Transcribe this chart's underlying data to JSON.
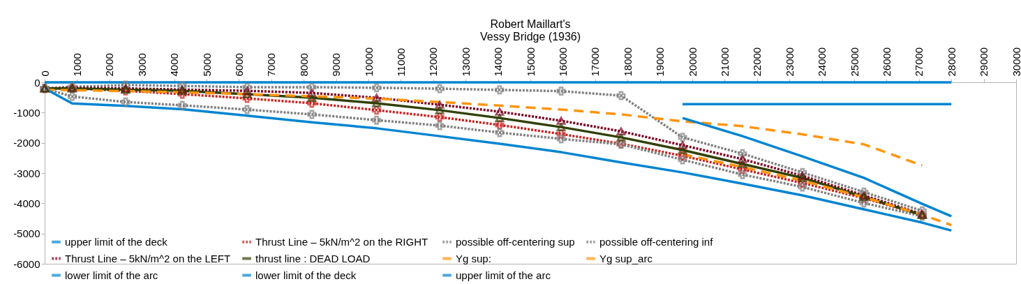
{
  "chart_data": {
    "type": "line",
    "title": "Robert Maillart's\nVessy Bridge (1936)",
    "xlim": [
      0,
      30000
    ],
    "xticks": [
      0,
      1000,
      2000,
      3000,
      4000,
      5000,
      6000,
      7000,
      8000,
      9000,
      10000,
      11000,
      12000,
      13000,
      14000,
      15000,
      16000,
      17000,
      18000,
      19000,
      20000,
      21000,
      22000,
      23000,
      24000,
      25000,
      26000,
      27000,
      28000,
      29000,
      30000
    ],
    "ylim": [
      -6000,
      0
    ],
    "yticks": [
      -6000,
      -5000,
      -4000,
      -3000,
      -2000,
      -1000,
      0
    ],
    "legend": "bottom",
    "series": [
      {
        "name": "upper limit of the deck",
        "color": "#0084d1",
        "line_style": "solid",
        "marker": "none",
        "x": [
          0,
          28000
        ],
        "values": [
          0,
          0
        ]
      },
      {
        "name": "Thrust Line –  5kN/m^2 on the RIGHT",
        "color": "#c9211e",
        "line_style": "dotted",
        "marker": "cross",
        "x": [
          0,
          850,
          2500,
          4250,
          6250,
          8250,
          10250,
          12200,
          14050,
          15950,
          17800,
          19700,
          21550,
          23400,
          25300,
          27100
        ],
        "values": [
          -200,
          -200,
          -280,
          -390,
          -530,
          -690,
          -920,
          -1150,
          -1410,
          -1710,
          -2030,
          -2430,
          -2880,
          -3330,
          -3830,
          -4390
        ]
      },
      {
        "name": "possible off-centering sup",
        "color": "#808080",
        "line_style": "dotted",
        "marker": "cross",
        "x": [
          0,
          850,
          2500,
          4250,
          6250,
          8250,
          10250,
          12200,
          14050,
          15950,
          17800,
          19700,
          21550,
          23400,
          25300,
          27100
        ],
        "values": [
          -200,
          -150,
          -90,
          -120,
          -160,
          -160,
          -180,
          -210,
          -250,
          -290,
          -440,
          -1820,
          -2360,
          -2980,
          -3630,
          -4250
        ]
      },
      {
        "name": "possible off-centering inf",
        "color": "#808080",
        "line_style": "dotted",
        "marker": "cross",
        "x": [
          0,
          850,
          2500,
          4250,
          6250,
          8250,
          10250,
          12200,
          14050,
          15950,
          17800,
          19700,
          21550,
          23400,
          25300,
          27100
        ],
        "values": [
          -200,
          -470,
          -650,
          -760,
          -900,
          -1060,
          -1250,
          -1430,
          -1660,
          -1870,
          -2050,
          -2560,
          -3050,
          -3460,
          -3990,
          -4430
        ]
      },
      {
        "name": "Thrust Line – 5kN/m^2 on the LEFT",
        "color": "#7e0021",
        "line_style": "dotted",
        "marker": "triangle",
        "x": [
          0,
          850,
          2500,
          4250,
          6250,
          8250,
          10250,
          12200,
          14050,
          15950,
          17800,
          19700,
          21550,
          23400,
          25300,
          27100
        ],
        "values": [
          -200,
          -180,
          -200,
          -240,
          -280,
          -350,
          -510,
          -740,
          -970,
          -1270,
          -1620,
          -2080,
          -2540,
          -3090,
          -3740,
          -4360
        ]
      },
      {
        "name": "thrust line : DEAD LOAD",
        "color": "#314004",
        "line_style": "solid",
        "marker": "triangle",
        "x": [
          0,
          850,
          2500,
          4250,
          6250,
          8250,
          10250,
          12200,
          14050,
          15950,
          17800,
          19700,
          21550,
          23400,
          25300,
          27100
        ],
        "values": [
          -200,
          -200,
          -240,
          -280,
          -390,
          -510,
          -690,
          -920,
          -1180,
          -1480,
          -1820,
          -2240,
          -2700,
          -3160,
          -3790,
          -4390
        ]
      },
      {
        "name": "Yg sup:",
        "color": "#ff950e",
        "line_style": "dashed",
        "marker": "none",
        "x": [
          0,
          850,
          2500,
          4250,
          6250,
          8250,
          10250,
          12200,
          14050,
          15950,
          17800,
          19700,
          21550,
          23400,
          25300,
          27100
        ],
        "values": [
          -250,
          -260,
          -290,
          -330,
          -390,
          -460,
          -540,
          -650,
          -770,
          -900,
          -1060,
          -1290,
          -1450,
          -1720,
          -2050,
          -2750
        ]
      },
      {
        "name": "Yg sup_arc",
        "color": "#ff950e",
        "line_style": "dashed",
        "marker": "none",
        "x": [
          19700,
          21550,
          23400,
          25300,
          27100,
          28000
        ],
        "values": [
          -2380,
          -2800,
          -3250,
          -3800,
          -4380,
          -4720
        ]
      },
      {
        "name": "lower limit of the arc",
        "color": "#0084d1",
        "line_style": "solid",
        "marker": "none",
        "x": [
          0,
          850,
          2500,
          4250,
          6250,
          8250,
          10250,
          12200,
          14050,
          15950,
          17800,
          19700,
          21550,
          23400,
          25300,
          27100,
          28000
        ],
        "values": [
          -200,
          -700,
          -780,
          -890,
          -1100,
          -1320,
          -1520,
          -1780,
          -2030,
          -2310,
          -2650,
          -2980,
          -3350,
          -3740,
          -4200,
          -4640,
          -4900
        ]
      },
      {
        "name": "lower limit of the deck",
        "color": "#0084d1",
        "line_style": "solid",
        "marker": "none",
        "x": [
          19700,
          28000
        ],
        "values": [
          -720,
          -720
        ]
      },
      {
        "name": "upper limit of the arc",
        "color": "#0084d1",
        "line_style": "solid",
        "marker": "none",
        "x": [
          19700,
          21550,
          23400,
          25300,
          27100,
          28000
        ],
        "values": [
          -1180,
          -1780,
          -2450,
          -3160,
          -4020,
          -4430
        ]
      }
    ]
  }
}
